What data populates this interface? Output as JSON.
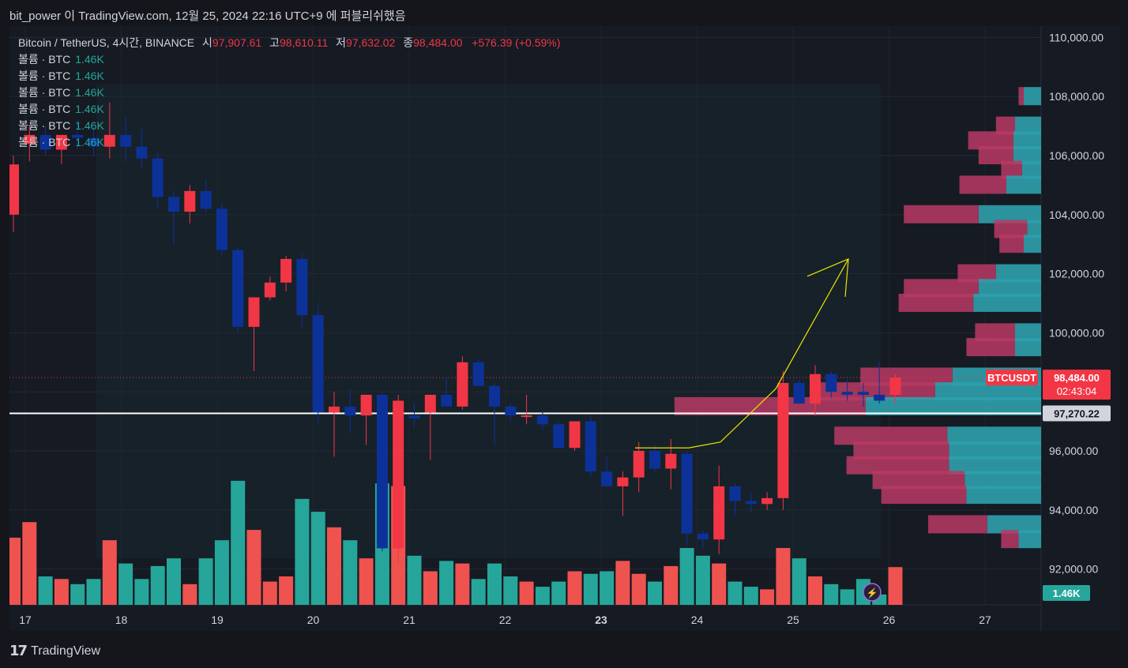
{
  "header": {
    "author_line": "bit_power 이 TradingView.com, 12월 25, 2024 22:16 UTC+9 에 퍼블리쉬했음"
  },
  "legend": {
    "symbol": "Bitcoin / TetherUS, 4시간, BINANCE",
    "open_label": "시",
    "open": "97,907.61",
    "high_label": "고",
    "high": "98,610.11",
    "low_label": "저",
    "low": "97,632.02",
    "close_label": "종",
    "close": "98,484.00",
    "change": "+576.39 (+0.59%)",
    "volume_rows": [
      {
        "label": "볼륨 · BTC",
        "value": "1.46K"
      },
      {
        "label": "볼륨 · BTC",
        "value": "1.46K"
      },
      {
        "label": "볼륨 · BTC",
        "value": "1.46K"
      },
      {
        "label": "볼륨 · BTC",
        "value": "1.46K"
      },
      {
        "label": "볼륨 · BTC",
        "value": "1.46K"
      },
      {
        "label": "볼륨 · BTC",
        "value": "1.46K"
      }
    ]
  },
  "footer": {
    "brand": "TradingView"
  },
  "colors": {
    "up": "#f23645",
    "down": "#0c3299",
    "vol_up": "#ef5350",
    "vol_down": "#26a69a",
    "vp_up": "#b83a64",
    "vp_down": "#2da0ac",
    "accent_line": "#e6e600"
  },
  "chart_data": {
    "type": "candlestick",
    "symbol_label": "BTCUSDT",
    "last_price": "98,484.00",
    "countdown": "02:43:04",
    "hline_price_label": "97,270.22",
    "hline_price": 97270.22,
    "volume_label": "1.46K",
    "ylim": [
      91000,
      110600
    ],
    "y_ticks": [
      92000,
      94000,
      96000,
      98000,
      100000,
      102000,
      104000,
      106000,
      108000,
      110000
    ],
    "y_tick_labels": [
      "92,000.00",
      "94,000.00",
      "96,000.00",
      "98,000.00",
      "100,000.00",
      "102,000.00",
      "104,000.00",
      "106,000.00",
      "108,000.00",
      "110,000.00"
    ],
    "x_ticks": [
      "17",
      "18",
      "19",
      "20",
      "21",
      "22",
      "23",
      "24",
      "25",
      "26",
      "27"
    ],
    "candles": [
      [
        104000,
        106000,
        103400,
        105700
      ],
      [
        106400,
        107000,
        105800,
        106700
      ],
      [
        106700,
        107000,
        106000,
        106200
      ],
      [
        106200,
        106700,
        105700,
        106700
      ],
      [
        106700,
        107200,
        106200,
        106600
      ],
      [
        106600,
        107000,
        106000,
        106300
      ],
      [
        106300,
        107800,
        105900,
        106700
      ],
      [
        106700,
        107300,
        105800,
        106300
      ],
      [
        106300,
        106900,
        105600,
        105900
      ],
      [
        105900,
        106100,
        104200,
        104600
      ],
      [
        104600,
        104800,
        103000,
        104100
      ],
      [
        104100,
        105000,
        103700,
        104800
      ],
      [
        104800,
        105200,
        104100,
        104200
      ],
      [
        104200,
        104400,
        102600,
        102800
      ],
      [
        102800,
        102900,
        100000,
        100200
      ],
      [
        100200,
        101200,
        98700,
        101200
      ],
      [
        101200,
        101900,
        101100,
        101700
      ],
      [
        101700,
        102600,
        101400,
        102500
      ],
      [
        102500,
        102700,
        100200,
        100600
      ],
      [
        100600,
        101000,
        96900,
        97300
      ],
      [
        97300,
        98000,
        95800,
        97500
      ],
      [
        97500,
        98100,
        96600,
        97200
      ],
      [
        97200,
        97900,
        96200,
        97900
      ],
      [
        97900,
        98000,
        92600,
        92700
      ],
      [
        92700,
        97900,
        92200,
        97700
      ],
      [
        97200,
        97600,
        96800,
        97100
      ],
      [
        97300,
        97900,
        95700,
        97900
      ],
      [
        97900,
        98500,
        97500,
        97500
      ],
      [
        97500,
        99200,
        97400,
        99000
      ],
      [
        99000,
        99100,
        98200,
        98200
      ],
      [
        98200,
        98300,
        96200,
        97500
      ],
      [
        97500,
        97600,
        97000,
        97200
      ],
      [
        97200,
        97900,
        96900,
        97200
      ],
      [
        97200,
        97300,
        96700,
        96900
      ],
      [
        96900,
        97000,
        96200,
        96100
      ],
      [
        96100,
        97000,
        96000,
        97000
      ],
      [
        97000,
        97200,
        95100,
        95300
      ],
      [
        95300,
        95800,
        94800,
        94800
      ],
      [
        94800,
        95300,
        93800,
        95100
      ],
      [
        95100,
        96300,
        94600,
        96000
      ],
      [
        96000,
        96200,
        95300,
        95400
      ],
      [
        95400,
        96400,
        94700,
        95900
      ],
      [
        95900,
        96000,
        92800,
        93200
      ],
      [
        93200,
        93300,
        92700,
        93000
      ],
      [
        93000,
        95500,
        92500,
        94800
      ],
      [
        94800,
        94900,
        93800,
        94300
      ],
      [
        94300,
        94600,
        93900,
        94200
      ],
      [
        94200,
        94600,
        94000,
        94400
      ],
      [
        94400,
        98700,
        94000,
        98300
      ],
      [
        98300,
        98400,
        97600,
        97600
      ],
      [
        97600,
        98900,
        97200,
        98600
      ],
      [
        98600,
        98700,
        97800,
        98000
      ],
      [
        98000,
        98400,
        97700,
        97900
      ],
      [
        98000,
        98300,
        97500,
        97900
      ],
      [
        97900,
        99000,
        97600,
        97700
      ],
      [
        97900,
        98600,
        97600,
        98484
      ]
    ],
    "volumes": [
      2.6,
      3.2,
      1.1,
      1.0,
      0.8,
      1.0,
      2.5,
      1.6,
      1.0,
      1.5,
      1.8,
      0.8,
      1.8,
      2.5,
      4.8,
      2.9,
      0.9,
      1.1,
      4.1,
      3.6,
      3.0,
      2.5,
      1.8,
      4.7,
      4.6,
      1.9,
      1.3,
      1.7,
      1.6,
      1.0,
      1.6,
      1.1,
      0.9,
      0.7,
      0.9,
      1.3,
      1.2,
      1.3,
      1.7,
      1.2,
      0.9,
      1.5,
      2.2,
      1.9,
      1.6,
      0.9,
      0.7,
      0.6,
      2.2,
      1.8,
      1.1,
      0.8,
      0.6,
      1.0,
      0.4,
      1.46
    ],
    "volume_profile": [
      {
        "price": 108000,
        "up": 0.3,
        "down": 1.0
      },
      {
        "price": 107000,
        "up": 1.1,
        "down": 1.5
      },
      {
        "price": 106500,
        "up": 2.6,
        "down": 1.6
      },
      {
        "price": 106000,
        "up": 2.0,
        "down": 1.6
      },
      {
        "price": 105500,
        "up": 1.2,
        "down": 1.1
      },
      {
        "price": 105000,
        "up": 2.7,
        "down": 2.0
      },
      {
        "price": 104000,
        "up": 4.3,
        "down": 3.6
      },
      {
        "price": 103500,
        "up": 1.9,
        "down": 0.8
      },
      {
        "price": 103000,
        "up": 1.4,
        "down": 1.0
      },
      {
        "price": 102000,
        "up": 2.2,
        "down": 2.6
      },
      {
        "price": 101500,
        "up": 4.3,
        "down": 3.6
      },
      {
        "price": 101000,
        "up": 4.3,
        "down": 3.9
      },
      {
        "price": 100000,
        "up": 2.3,
        "down": 1.5
      },
      {
        "price": 99500,
        "up": 2.8,
        "down": 1.5
      },
      {
        "price": 98500,
        "up": 5.3,
        "down": 5.1
      },
      {
        "price": 98000,
        "up": 7.0,
        "down": 6.1
      },
      {
        "price": 97500,
        "up": 11.0,
        "down": 10.1
      },
      {
        "price": 96500,
        "up": 6.5,
        "down": 5.4
      },
      {
        "price": 96000,
        "up": 5.5,
        "down": 5.3
      },
      {
        "price": 95500,
        "up": 5.9,
        "down": 5.3
      },
      {
        "price": 95000,
        "up": 5.3,
        "down": 4.4
      },
      {
        "price": 94500,
        "up": 4.9,
        "down": 4.3
      },
      {
        "price": 93500,
        "up": 3.4,
        "down": 3.1
      },
      {
        "price": 93000,
        "up": 1.0,
        "down": 1.3
      }
    ],
    "arrow_path_prices": [
      [
        96100,
        0
      ],
      [
        96100,
        1
      ],
      [
        96300,
        2
      ],
      [
        98100,
        3
      ],
      [
        102500,
        4
      ]
    ]
  }
}
